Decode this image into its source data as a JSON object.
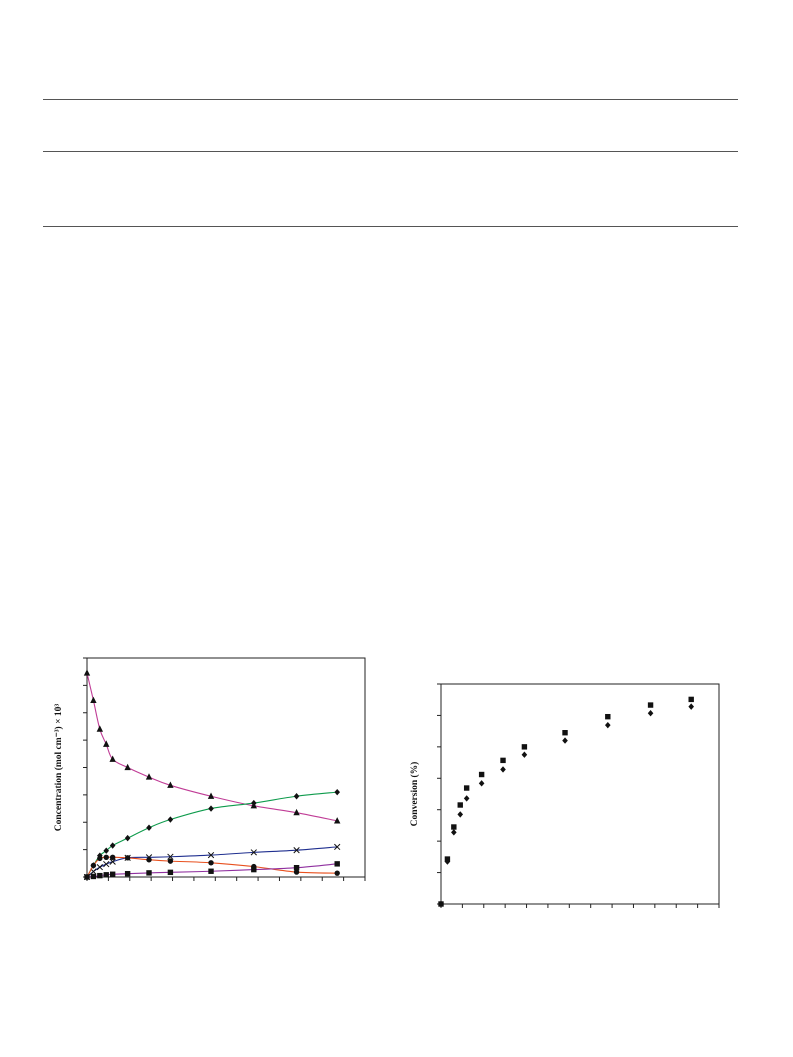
{
  "chart_data": [
    {
      "type": "line",
      "ylabel": "Concentration (mol cm⁻³) × 10³",
      "xlabel": "",
      "xlim": [
        0,
        6.5
      ],
      "ylim": [
        0,
        8
      ],
      "grid": false,
      "x": [
        0,
        0.15,
        0.3,
        0.45,
        0.6,
        0.95,
        1.45,
        1.95,
        2.9,
        3.9,
        4.9,
        5.85
      ],
      "series": [
        {
          "color": "#c03c96",
          "marker": "triangle",
          "values": [
            7.45,
            6.45,
            5.4,
            4.85,
            4.3,
            4.0,
            3.65,
            3.35,
            2.95,
            2.6,
            2.35,
            2.05
          ]
        },
        {
          "color": "#0e9b4c",
          "marker": "diamond",
          "values": [
            0.0,
            0.42,
            0.78,
            0.96,
            1.15,
            1.42,
            1.8,
            2.1,
            2.5,
            2.7,
            2.95,
            3.1
          ]
        },
        {
          "color": "#1f2f8f",
          "marker": "cross",
          "values": [
            0.0,
            0.2,
            0.36,
            0.47,
            0.56,
            0.7,
            0.72,
            0.74,
            0.8,
            0.9,
            0.98,
            1.1
          ]
        },
        {
          "color": "#e8501e",
          "marker": "circle",
          "values": [
            0.0,
            0.42,
            0.68,
            0.72,
            0.72,
            0.7,
            0.63,
            0.58,
            0.52,
            0.38,
            0.18,
            0.14
          ]
        },
        {
          "color": "#8f2f9f",
          "marker": "square",
          "values": [
            0.0,
            0.02,
            0.05,
            0.08,
            0.1,
            0.12,
            0.15,
            0.17,
            0.21,
            0.27,
            0.34,
            0.48
          ]
        }
      ]
    },
    {
      "type": "scatter",
      "ylabel": "Conversion (%)",
      "xlabel": "",
      "xlim": [
        0,
        6.5
      ],
      "ylim": [
        0,
        70
      ],
      "grid": false,
      "x": [
        0,
        0.15,
        0.3,
        0.45,
        0.6,
        0.95,
        1.45,
        1.95,
        2.9,
        3.9,
        4.9,
        5.85
      ],
      "series": [
        {
          "marker": "square",
          "values": [
            0,
            14.3,
            24.5,
            31.5,
            36.9,
            41.2,
            45.7,
            50.0,
            54.5,
            59.6,
            63.3,
            65.1
          ]
        },
        {
          "marker": "diamond",
          "values": [
            0,
            13.5,
            22.8,
            28.5,
            33.6,
            38.4,
            42.8,
            47.5,
            52.0,
            56.9,
            60.7,
            62.8
          ]
        }
      ]
    }
  ]
}
